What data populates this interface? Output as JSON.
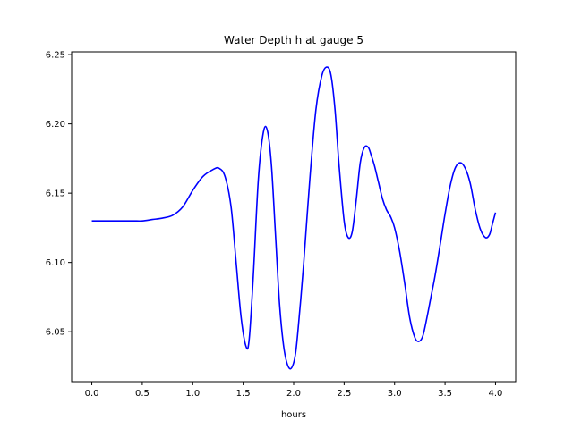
{
  "chart_data": {
    "type": "line",
    "title": "Water Depth h at gauge 5",
    "xlabel": "hours",
    "ylabel": "",
    "xlim": [
      -0.2,
      4.2
    ],
    "ylim": [
      6.014,
      6.252
    ],
    "xticks": [
      0.0,
      0.5,
      1.0,
      1.5,
      2.0,
      2.5,
      3.0,
      3.5,
      4.0
    ],
    "xtick_labels": [
      "0.0",
      "0.5",
      "1.0",
      "1.5",
      "2.0",
      "2.5",
      "3.0",
      "3.5",
      "4.0"
    ],
    "yticks": [
      6.05,
      6.1,
      6.15,
      6.2,
      6.25
    ],
    "ytick_labels": [
      "6.05",
      "6.10",
      "6.15",
      "6.20",
      "6.25"
    ],
    "grid": false,
    "legend": "none",
    "series": [
      {
        "color": "#0000ff",
        "x": [
          0.0,
          0.2,
          0.4,
          0.5,
          0.6,
          0.7,
          0.8,
          0.9,
          1.0,
          1.1,
          1.2,
          1.26,
          1.32,
          1.38,
          1.43,
          1.48,
          1.53,
          1.56,
          1.6,
          1.65,
          1.7,
          1.74,
          1.78,
          1.82,
          1.86,
          1.9,
          1.94,
          1.98,
          2.02,
          2.06,
          2.1,
          2.16,
          2.22,
          2.28,
          2.33,
          2.37,
          2.41,
          2.45,
          2.5,
          2.54,
          2.58,
          2.62,
          2.66,
          2.7,
          2.74,
          2.77,
          2.8,
          2.84,
          2.88,
          2.92,
          2.96,
          3.0,
          3.05,
          3.1,
          3.15,
          3.2,
          3.24,
          3.28,
          3.32,
          3.36,
          3.4,
          3.45,
          3.5,
          3.55,
          3.6,
          3.65,
          3.7,
          3.75,
          3.8,
          3.85,
          3.9,
          3.94,
          3.97,
          4.0
        ],
        "y": [
          6.13,
          6.13,
          6.13,
          6.13,
          6.131,
          6.132,
          6.134,
          6.14,
          6.152,
          6.162,
          6.167,
          6.168,
          6.162,
          6.14,
          6.1,
          6.06,
          6.039,
          6.045,
          6.09,
          6.16,
          6.194,
          6.195,
          6.17,
          6.12,
          6.07,
          6.04,
          6.026,
          6.024,
          6.035,
          6.065,
          6.1,
          6.16,
          6.21,
          6.235,
          6.241,
          6.235,
          6.21,
          6.17,
          6.13,
          6.118,
          6.122,
          6.145,
          6.172,
          6.183,
          6.183,
          6.177,
          6.17,
          6.158,
          6.146,
          6.138,
          6.133,
          6.125,
          6.108,
          6.085,
          6.06,
          6.046,
          6.043,
          6.047,
          6.06,
          6.075,
          6.09,
          6.112,
          6.135,
          6.155,
          6.168,
          6.172,
          6.168,
          6.157,
          6.138,
          6.124,
          6.118,
          6.12,
          6.128,
          6.136
        ]
      }
    ]
  }
}
